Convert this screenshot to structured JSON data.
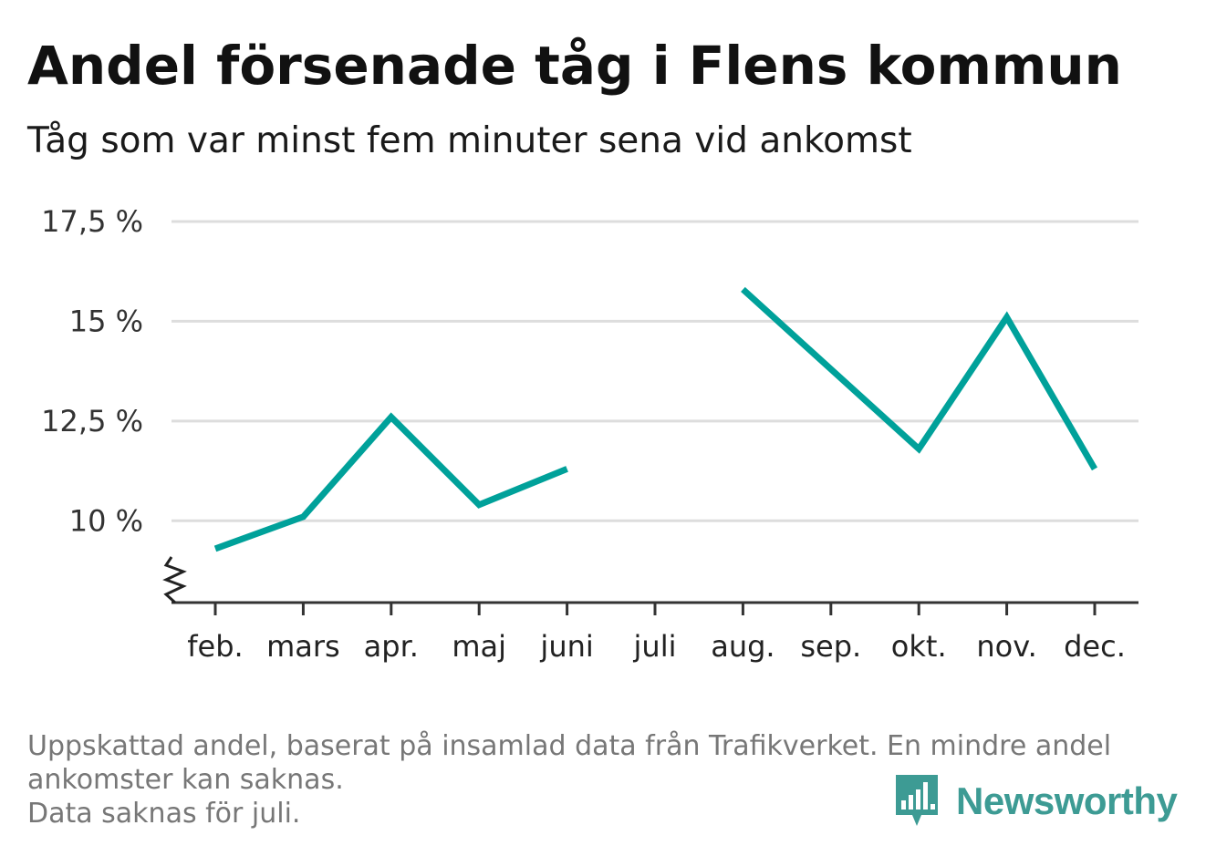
{
  "header": {
    "title": "Andel försenade tåg i Flens kommun",
    "subtitle": "Tåg som var minst fem minuter sena vid ankomst"
  },
  "chart_data": {
    "type": "line",
    "categories": [
      "feb.",
      "mars",
      "apr.",
      "maj",
      "juni",
      "juli",
      "aug.",
      "sep.",
      "okt.",
      "nov.",
      "dec."
    ],
    "series": [
      {
        "values": [
          9.3,
          10.1,
          12.6,
          10.4,
          11.3,
          null,
          15.8,
          13.8,
          11.8,
          15.1,
          11.3
        ]
      }
    ],
    "yticks": [
      10,
      12.5,
      15,
      17.5
    ],
    "ytick_labels": [
      "10 %",
      "12,5 %",
      "15 %",
      "17,5 %"
    ],
    "ylim": [
      7.95,
      17.5
    ],
    "axis_break": true,
    "grid": true,
    "line_color": "#00a19a"
  },
  "footnote": {
    "line1": "Uppskattad andel, baserat på insamlad data från Trafikverket. En mindre andel",
    "line2": "ankomster kan saknas.",
    "line3": "Data saknas för juli."
  },
  "brand": {
    "name": "Newsworthy",
    "color": "#3d9b94",
    "icon": "bar-chart-speech-bubble-icon"
  }
}
